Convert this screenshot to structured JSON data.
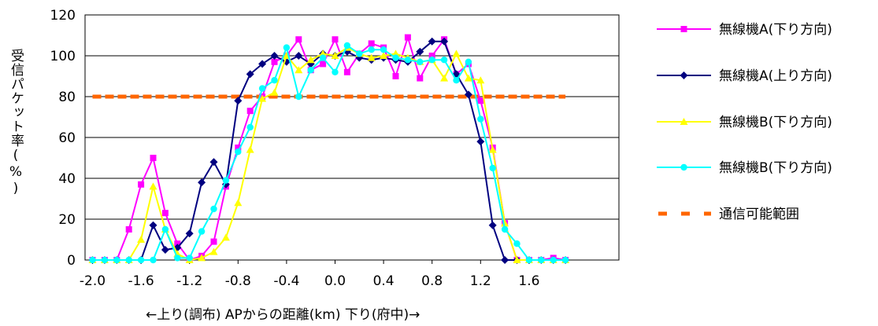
{
  "chart_data": {
    "type": "line",
    "xlabel": "←上り(調布) APからの距離(km) 下り(府中)→",
    "ylabel": "受信パケット率(%)",
    "xlim": [
      -2.0,
      2.0
    ],
    "ylim": [
      0,
      120
    ],
    "x_ticks": [
      "-2.0",
      "-1.6",
      "-1.2",
      "-0.8",
      "-0.4",
      "0.0",
      "0.4",
      "0.8",
      "1.2",
      "1.6"
    ],
    "y_ticks": [
      "0",
      "20",
      "40",
      "60",
      "80",
      "100",
      "120"
    ],
    "grid": "horizontal",
    "legend_position": "right",
    "x": [
      -2.0,
      -1.9,
      -1.8,
      -1.7,
      -1.6,
      -1.5,
      -1.4,
      -1.3,
      -1.2,
      -1.1,
      -1.0,
      -0.9,
      -0.8,
      -0.7,
      -0.6,
      -0.5,
      -0.4,
      -0.3,
      -0.2,
      -0.1,
      0.0,
      0.1,
      0.2,
      0.3,
      0.4,
      0.5,
      0.6,
      0.7,
      0.8,
      0.9,
      1.0,
      1.1,
      1.2,
      1.3,
      1.4,
      1.5,
      1.6,
      1.7,
      1.8,
      1.9
    ],
    "series": [
      {
        "name": "無線機A(下り方向)",
        "color": "#ff00ff",
        "marker": "square",
        "values": [
          0,
          0,
          0,
          15,
          37,
          50,
          23,
          8,
          0,
          2,
          9,
          36,
          55,
          73,
          80,
          97,
          100,
          108,
          93,
          96,
          108,
          92,
          101,
          106,
          104,
          90,
          109,
          89,
          100,
          108,
          91,
          96,
          78,
          55,
          18,
          0,
          0,
          0,
          1,
          0
        ]
      },
      {
        "name": "無線機A(上り方向)",
        "color": "#000080",
        "marker": "diamond",
        "values": [
          0,
          0,
          0,
          0,
          0,
          17,
          5,
          6,
          13,
          38,
          48,
          37,
          78,
          91,
          96,
          100,
          97,
          100,
          96,
          101,
          100,
          102,
          99,
          98,
          99,
          98,
          97,
          102,
          107,
          107,
          91,
          81,
          58,
          17,
          0,
          0,
          0,
          0,
          0,
          0
        ]
      },
      {
        "name": "無線機B(下り方向)",
        "color": "#ffff00",
        "marker": "triangle",
        "values": [
          0,
          0,
          0,
          0,
          10,
          36,
          15,
          3,
          0,
          1,
          4,
          11,
          28,
          54,
          79,
          82,
          100,
          93,
          98,
          101,
          100,
          104,
          101,
          99,
          100,
          101,
          99,
          97,
          98,
          89,
          101,
          89,
          88,
          54,
          18,
          0,
          0,
          0,
          0,
          0
        ]
      },
      {
        "name": "無線機B(下り方向)",
        "color": "#00ffff",
        "marker": "circle",
        "values": [
          0,
          0,
          0,
          0,
          0,
          0,
          15,
          1,
          1,
          14,
          25,
          39,
          53,
          65,
          84,
          88,
          104,
          80,
          93,
          99,
          92,
          105,
          101,
          103,
          103,
          99,
          98,
          97,
          98,
          98,
          88,
          97,
          69,
          45,
          15,
          8,
          0,
          0,
          0,
          0
        ]
      }
    ],
    "threshold": {
      "name": "通信可能範囲",
      "color": "#ff6600",
      "value": 80,
      "range": [
        -2.0,
        1.9
      ]
    }
  }
}
